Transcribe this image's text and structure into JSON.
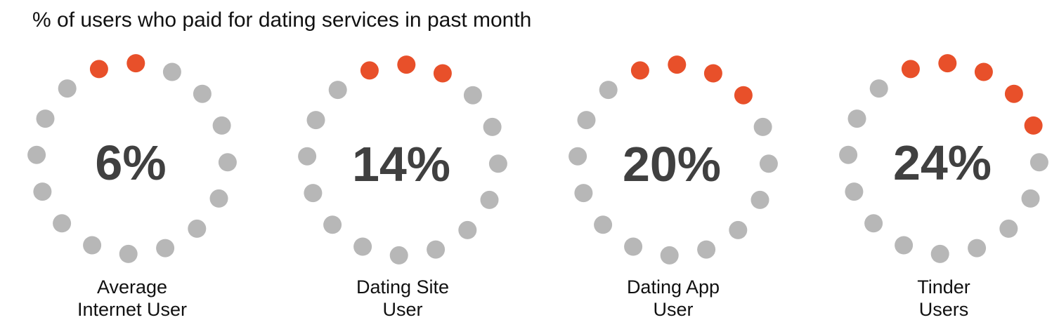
{
  "title": "% of users who paid for dating services in past month",
  "chart_data": {
    "type": "dot-ring",
    "dots_per_ring": 16,
    "colors": {
      "highlight": "#E8502A",
      "base": "#B7B7B7",
      "value_text": "#404040"
    },
    "categories": [
      "Average Internet User",
      "Dating Site User",
      "Dating App User",
      "Tinder Users"
    ],
    "values": [
      6,
      14,
      20,
      24
    ],
    "highlighted_dots": [
      2,
      3,
      4,
      5
    ],
    "items": [
      {
        "value_label": "6%",
        "caption_lines": [
          "Average",
          "Internet User"
        ]
      },
      {
        "value_label": "14%",
        "caption_lines": [
          "Dating Site",
          "User"
        ]
      },
      {
        "value_label": "20%",
        "caption_lines": [
          "Dating App",
          "User"
        ]
      },
      {
        "value_label": "24%",
        "caption_lines": [
          "Tinder",
          "Users"
        ]
      }
    ]
  }
}
